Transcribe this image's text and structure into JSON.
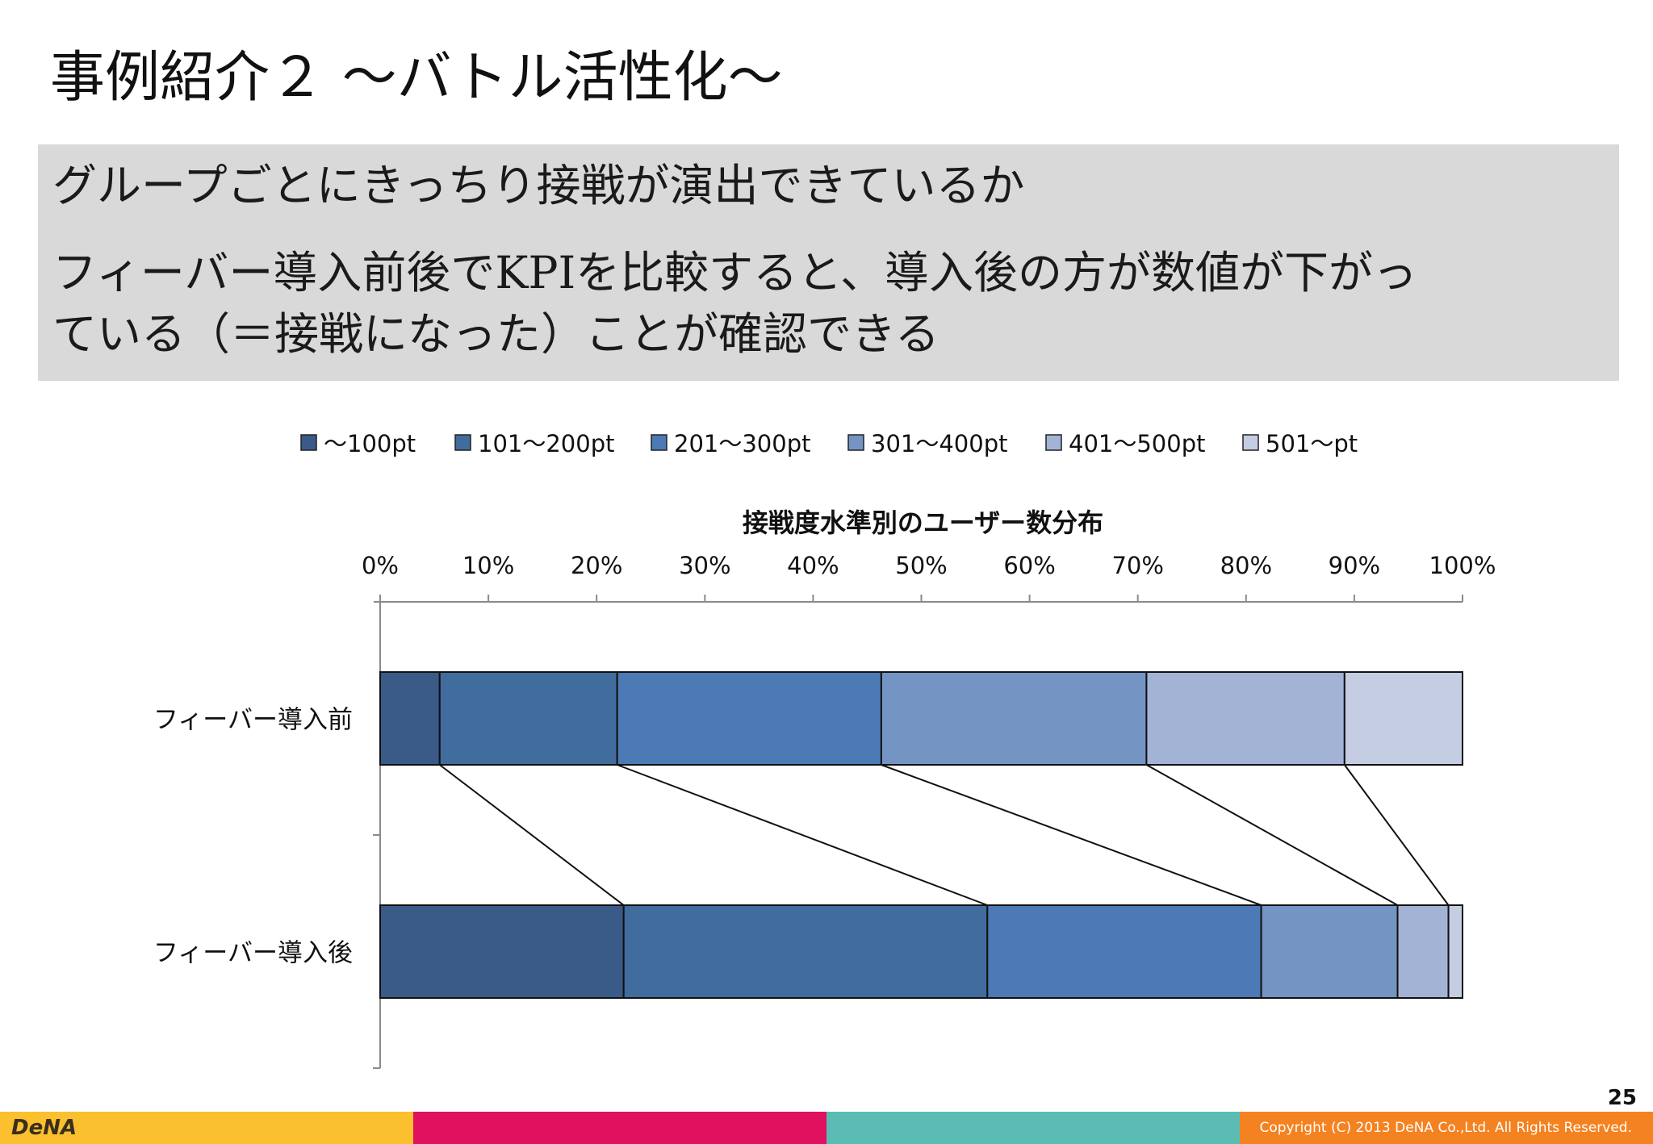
{
  "slide": {
    "title": "事例紹介２ ～バトル活性化～",
    "summary": {
      "line1": "グループごとにきっちり接戦が演出できているか",
      "line2": "フィーバー導入前後でKPIを比較すると、導入後の方が数値が下がっ",
      "line3": "ている（＝接戦になった）ことが確認できる"
    },
    "page_number": "25",
    "logo_text": "DeNA",
    "copyright": "Copyright (C) 2013 DeNA Co.,Ltd. All Rights Reserved.",
    "footer_colors": [
      "#fbc02d",
      "#e0115f",
      "#5bbcb4",
      "#f58220"
    ]
  },
  "chart_data": {
    "type": "bar",
    "orientation": "horizontal",
    "stacked": "100%",
    "title": "接戦度水準別のユーザー数分布",
    "categories": [
      "フィーバー導入前",
      "フィーバー導入後"
    ],
    "series": [
      {
        "name": "～100pt",
        "color": "#3a5a88",
        "values": [
          5.5,
          22.5
        ]
      },
      {
        "name": "101～200pt",
        "color": "#416c9e",
        "values": [
          16.4,
          33.6
        ]
      },
      {
        "name": "201～300pt",
        "color": "#4b7ab4",
        "values": [
          24.4,
          25.3
        ]
      },
      {
        "name": "301～400pt",
        "color": "#7495c4",
        "values": [
          24.5,
          12.6
        ]
      },
      {
        "name": "401～500pt",
        "color": "#a2b3d6",
        "values": [
          18.3,
          4.7
        ]
      },
      {
        "name": "501～pt",
        "color": "#c5cde3",
        "values": [
          10.9,
          1.3
        ]
      }
    ],
    "x_ticks": [
      "0%",
      "10%",
      "20%",
      "30%",
      "40%",
      "50%",
      "60%",
      "70%",
      "80%",
      "90%",
      "100%"
    ],
    "xlim": [
      0,
      100
    ],
    "series_lines": true,
    "legend_position": "top",
    "grid": false
  }
}
